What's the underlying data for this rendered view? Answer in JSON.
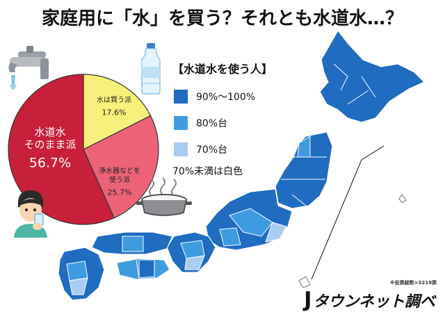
{
  "title": "家庭用に「水」を買う？それとも水道水…？",
  "chart_data": {
    "type": "pie",
    "slices": [
      {
        "label": "水道水\nそのまま派",
        "value": 56.7,
        "value_label": "56.7%",
        "color": "#c8203a"
      },
      {
        "label": "水は買う派",
        "value": 17.6,
        "value_label": "17.6%",
        "color": "#f7f07a"
      },
      {
        "label": "浄水器などを\n使う派",
        "value": 25.7,
        "value_label": "25.7%",
        "color": "#ec6378"
      }
    ]
  },
  "legend": {
    "title": "【水道水を使う人】",
    "items": [
      {
        "label": "90%～100%",
        "color": "#1f6cc0"
      },
      {
        "label": "80%台",
        "color": "#3e9be0"
      },
      {
        "label": "70%台",
        "color": "#a9cdf0"
      }
    ],
    "note": "70%未満は白色"
  },
  "footnote": "※投票総数=3219票",
  "brand": {
    "mark": "J",
    "text": "タウンネット調べ"
  },
  "icons": [
    "faucet-icon",
    "water-bottle-icon",
    "rice-cooker-icon",
    "drinking-person-icon",
    "japan-map"
  ]
}
